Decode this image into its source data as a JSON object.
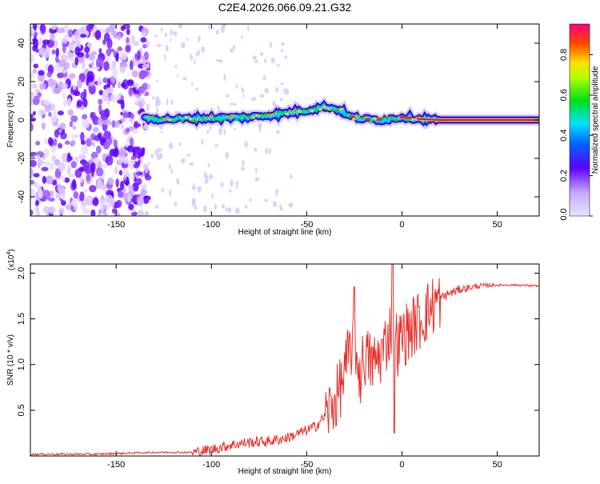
{
  "title": "C2E4.2026.066.09.21.G32",
  "chart_data": [
    {
      "type": "heatmap",
      "xlabel": "Height of straight line (km)",
      "ylabel": "Frequency (Hz)",
      "xlim": [
        -195,
        72
      ],
      "ylim": [
        -50,
        50
      ],
      "xticks": [
        -150,
        -100,
        -50,
        0,
        50
      ],
      "yticks": [
        -40,
        -20,
        0,
        20,
        40
      ],
      "colorbar": {
        "label": "Normalized spectral amplitude",
        "range": [
          0,
          1
        ],
        "ticks": [
          "0.0",
          "0.2",
          "0.4",
          "0.6",
          "0.8"
        ]
      },
      "ridge": [
        {
          "x": -135,
          "y": 0.5
        },
        {
          "x": -120,
          "y": 0.5
        },
        {
          "x": -100,
          "y": 1.0
        },
        {
          "x": -80,
          "y": 1.5
        },
        {
          "x": -65,
          "y": 3.0
        },
        {
          "x": -50,
          "y": 5.0
        },
        {
          "x": -40,
          "y": 7.0
        },
        {
          "x": -32,
          "y": 5.0
        },
        {
          "x": -28,
          "y": 2.0
        },
        {
          "x": -20,
          "y": 0.5
        },
        {
          "x": -10,
          "y": 0.0
        },
        {
          "x": 0,
          "y": 1.5
        },
        {
          "x": 10,
          "y": 0.5
        },
        {
          "x": 20,
          "y": 0.0
        },
        {
          "x": 72,
          "y": 0.0
        }
      ]
    },
    {
      "type": "line",
      "xlabel": "Height of straight line (km)",
      "ylabel": "SNR (10 * v/v)",
      "yscale_label": "(x10",
      "yscale_exp": "4",
      "yscale_close": ")",
      "xlim": [
        -195,
        72
      ],
      "ylim": [
        0,
        2.1
      ],
      "xticks": [
        -150,
        -100,
        -50,
        0,
        50
      ],
      "yticks": [
        "0.5",
        "1.0",
        "1.5",
        "2.0"
      ],
      "series": [
        {
          "name": "SNR",
          "color": "#e8302a",
          "points": [
            [
              -195,
              0.02
            ],
            [
              -160,
              0.02
            ],
            [
              -130,
              0.04
            ],
            [
              -110,
              0.04
            ],
            [
              -100,
              0.07
            ],
            [
              -90,
              0.12
            ],
            [
              -80,
              0.15
            ],
            [
              -70,
              0.16
            ],
            [
              -60,
              0.2
            ],
            [
              -50,
              0.28
            ],
            [
              -45,
              0.33
            ],
            [
              -40,
              0.45
            ],
            [
              -35,
              0.6
            ],
            [
              -30,
              0.9
            ],
            [
              -28,
              1.1
            ],
            [
              -25,
              1.3
            ],
            [
              -22,
              0.85
            ],
            [
              -20,
              1.1
            ],
            [
              -15,
              1.0
            ],
            [
              -10,
              1.15
            ],
            [
              -5,
              1.45
            ],
            [
              -2,
              1.2
            ],
            [
              0,
              1.3
            ],
            [
              5,
              1.4
            ],
            [
              10,
              1.5
            ],
            [
              15,
              1.62
            ],
            [
              20,
              1.72
            ],
            [
              25,
              1.78
            ],
            [
              30,
              1.82
            ],
            [
              40,
              1.86
            ],
            [
              50,
              1.87
            ],
            [
              60,
              1.87
            ],
            [
              72,
              1.86
            ]
          ],
          "spikes": [
            {
              "x": -25,
              "y": 1.85
            },
            {
              "x": -5,
              "y": 2.1
            },
            {
              "x": -4,
              "y": 0.25
            }
          ]
        }
      ]
    }
  ]
}
